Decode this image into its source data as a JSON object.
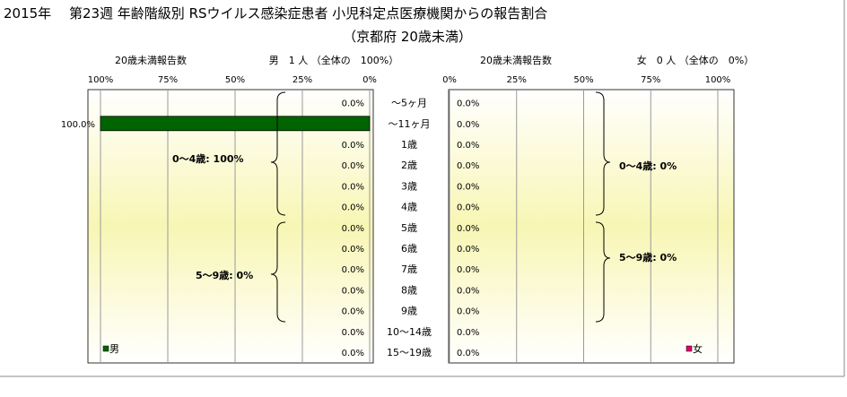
{
  "title_line1": "2015年　 第23週 年齢階級別 RSウイルス感染症患者 小児科定点医療機関からの報告割合",
  "title_line2": "（京都府 20歳未満）",
  "colors": {
    "male": "#006400",
    "female": "#e0006a",
    "grid": "#999999",
    "border": "#333333"
  },
  "chart_data": {
    "type": "bar",
    "categories": [
      "～5ヶ月",
      "～11ヶ月",
      "1歳",
      "2歳",
      "3歳",
      "4歳",
      "5歳",
      "6歳",
      "7歳",
      "8歳",
      "9歳",
      "10～14歳",
      "15～19歳"
    ],
    "xlim": [
      0,
      100
    ],
    "xticks": [
      "100%",
      "75%",
      "50%",
      "25%",
      "0%"
    ],
    "xticks_right": [
      "0%",
      "25%",
      "50%",
      "75%",
      "100%"
    ],
    "series": [
      {
        "name": "男",
        "axis_title": "20歳未満報告数",
        "summary": "男　1 人 （全体の　100%）",
        "values": [
          0,
          100,
          0,
          0,
          0,
          0,
          0,
          0,
          0,
          0,
          0,
          0,
          0
        ],
        "value_labels": [
          "0.0%",
          "100.0%",
          "0.0%",
          "0.0%",
          "0.0%",
          "0.0%",
          "0.0%",
          "0.0%",
          "0.0%",
          "0.0%",
          "0.0%",
          "0.0%",
          "0.0%"
        ],
        "group_labels": [
          "0～4歳: 100%",
          "5～9歳: 0%"
        ]
      },
      {
        "name": "女",
        "axis_title": "20歳未満報告数",
        "summary": "女　0 人 （全体の　0%）",
        "values": [
          0,
          0,
          0,
          0,
          0,
          0,
          0,
          0,
          0,
          0,
          0,
          0,
          0
        ],
        "value_labels": [
          "0.0%",
          "0.0%",
          "0.0%",
          "0.0%",
          "0.0%",
          "0.0%",
          "0.0%",
          "0.0%",
          "0.0%",
          "0.0%",
          "0.0%",
          "0.0%",
          "0.0%"
        ],
        "group_labels": [
          "0～4歳: 0%",
          "5～9歳: 0%"
        ]
      }
    ]
  }
}
